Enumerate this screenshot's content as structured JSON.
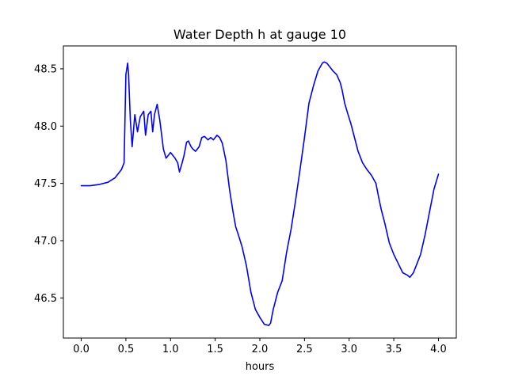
{
  "chart_data": {
    "type": "line",
    "title": "Water Depth h at gauge 10",
    "xlabel": "hours",
    "ylabel": "",
    "xlim": [
      -0.2,
      4.2
    ],
    "ylim": [
      46.15,
      48.7
    ],
    "xticks": [
      0.0,
      0.5,
      1.0,
      1.5,
      2.0,
      2.5,
      3.0,
      3.5,
      4.0
    ],
    "xtick_labels": [
      "0.0",
      "0.5",
      "1.0",
      "1.5",
      "2.0",
      "2.5",
      "3.0",
      "3.5",
      "4.0"
    ],
    "yticks": [
      46.5,
      47.0,
      47.5,
      48.0,
      48.5
    ],
    "ytick_labels": [
      "46.5",
      "47.0",
      "47.5",
      "48.0",
      "48.5"
    ],
    "grid": false,
    "legend": "none",
    "series": [
      {
        "color": "#0000ff",
        "x": [
          0.0,
          0.1,
          0.2,
          0.3,
          0.38,
          0.45,
          0.48,
          0.5,
          0.52,
          0.53,
          0.55,
          0.57,
          0.6,
          0.63,
          0.66,
          0.7,
          0.72,
          0.75,
          0.78,
          0.8,
          0.82,
          0.85,
          0.88,
          0.92,
          0.95,
          1.0,
          1.02,
          1.05,
          1.08,
          1.1,
          1.13,
          1.15,
          1.18,
          1.2,
          1.23,
          1.25,
          1.28,
          1.32,
          1.35,
          1.38,
          1.42,
          1.45,
          1.48,
          1.52,
          1.55,
          1.58,
          1.62,
          1.66,
          1.7,
          1.73,
          1.76,
          1.8,
          1.85,
          1.9,
          1.95,
          2.0,
          2.05,
          2.1,
          2.12,
          2.15,
          2.2,
          2.25,
          2.3,
          2.35,
          2.4,
          2.45,
          2.5,
          2.55,
          2.6,
          2.65,
          2.7,
          2.72,
          2.75,
          2.78,
          2.82,
          2.86,
          2.9,
          2.92,
          2.95,
          2.98,
          3.02,
          3.06,
          3.1,
          3.15,
          3.2,
          3.25,
          3.3,
          3.33,
          3.36,
          3.4,
          3.45,
          3.5,
          3.55,
          3.6,
          3.65,
          3.68,
          3.7,
          3.72,
          3.75,
          3.8,
          3.85,
          3.9,
          3.95,
          4.0
        ],
        "y": [
          47.48,
          47.48,
          47.49,
          47.51,
          47.55,
          47.62,
          47.68,
          48.45,
          48.55,
          48.45,
          48.05,
          47.82,
          48.1,
          47.95,
          48.08,
          48.13,
          47.92,
          48.1,
          48.13,
          47.95,
          48.1,
          48.19,
          48.05,
          47.8,
          47.72,
          47.77,
          47.75,
          47.72,
          47.68,
          47.6,
          47.68,
          47.74,
          47.86,
          47.87,
          47.82,
          47.8,
          47.78,
          47.82,
          47.9,
          47.91,
          47.88,
          47.9,
          47.88,
          47.92,
          47.9,
          47.85,
          47.7,
          47.45,
          47.25,
          47.12,
          47.05,
          46.95,
          46.78,
          46.55,
          46.4,
          46.33,
          46.27,
          46.26,
          46.28,
          46.4,
          46.55,
          46.65,
          46.9,
          47.1,
          47.35,
          47.62,
          47.9,
          48.2,
          48.35,
          48.48,
          48.55,
          48.56,
          48.55,
          48.52,
          48.48,
          48.45,
          48.38,
          48.32,
          48.2,
          48.12,
          48.02,
          47.9,
          47.78,
          47.68,
          47.62,
          47.57,
          47.5,
          47.38,
          47.27,
          47.15,
          46.98,
          46.88,
          46.8,
          46.72,
          46.7,
          46.68,
          46.7,
          46.72,
          46.78,
          46.88,
          47.05,
          47.25,
          47.45,
          47.58
        ]
      }
    ]
  }
}
